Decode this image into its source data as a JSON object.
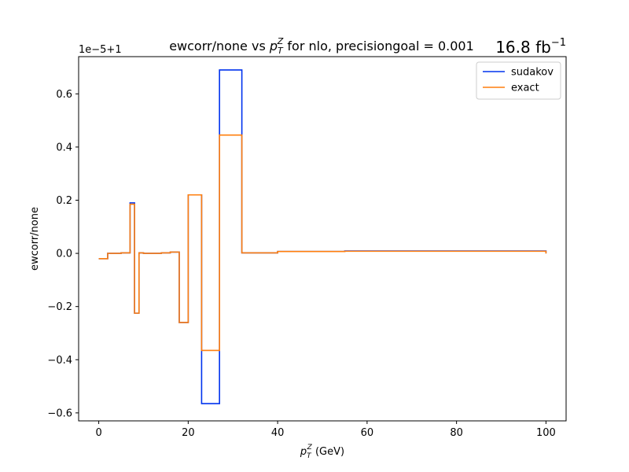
{
  "chart_data": {
    "type": "line",
    "drawstyle": "steps",
    "title_prefix": "ewcorr/none vs ",
    "title_var": "p",
    "title_var_sub": "T",
    "title_var_sup": "Z",
    "title_suffix": " for nlo, precisiongoal = 0.001",
    "luminosity": "16.8 fb",
    "luminosity_exp": "−1",
    "xlabel_var": "p",
    "xlabel_sub": "T",
    "xlabel_sup": "Z",
    "xlabel_unit": " (GeV)",
    "ylabel": "ewcorr/none",
    "offset_text": "1e−5+1",
    "xlim": [
      -4.5,
      104.5
    ],
    "ylim": [
      -0.63,
      0.74
    ],
    "xticks": [
      0,
      20,
      40,
      60,
      80,
      100
    ],
    "xtick_labels": [
      "0",
      "20",
      "40",
      "60",
      "80",
      "100"
    ],
    "yticks": [
      -0.6,
      -0.4,
      -0.2,
      0.0,
      0.2,
      0.4,
      0.6
    ],
    "ytick_labels": [
      "−0.6",
      "−0.4",
      "−0.2",
      "0.0",
      "0.2",
      "0.4",
      "0.6"
    ],
    "bin_edges": [
      0,
      2,
      5,
      7,
      8,
      9,
      10,
      14,
      16,
      18,
      20,
      23,
      27,
      32,
      40,
      55,
      100
    ],
    "series": [
      {
        "name": "sudakov",
        "color": "#0033ee",
        "values": [
          -0.02,
          0.0,
          0.002,
          0.19,
          -0.225,
          0.002,
          0.0,
          0.002,
          0.005,
          -0.26,
          0.22,
          -0.565,
          0.69,
          0.002,
          0.007,
          0.009,
          0.001
        ]
      },
      {
        "name": "exact",
        "color": "#ff7f0e",
        "values": [
          -0.02,
          0.0,
          0.002,
          0.185,
          -0.225,
          0.002,
          0.0,
          0.002,
          0.005,
          -0.26,
          0.22,
          -0.365,
          0.445,
          0.002,
          0.007,
          0.008,
          -0.001
        ]
      }
    ],
    "legend_position": "upper right",
    "grid": false
  }
}
